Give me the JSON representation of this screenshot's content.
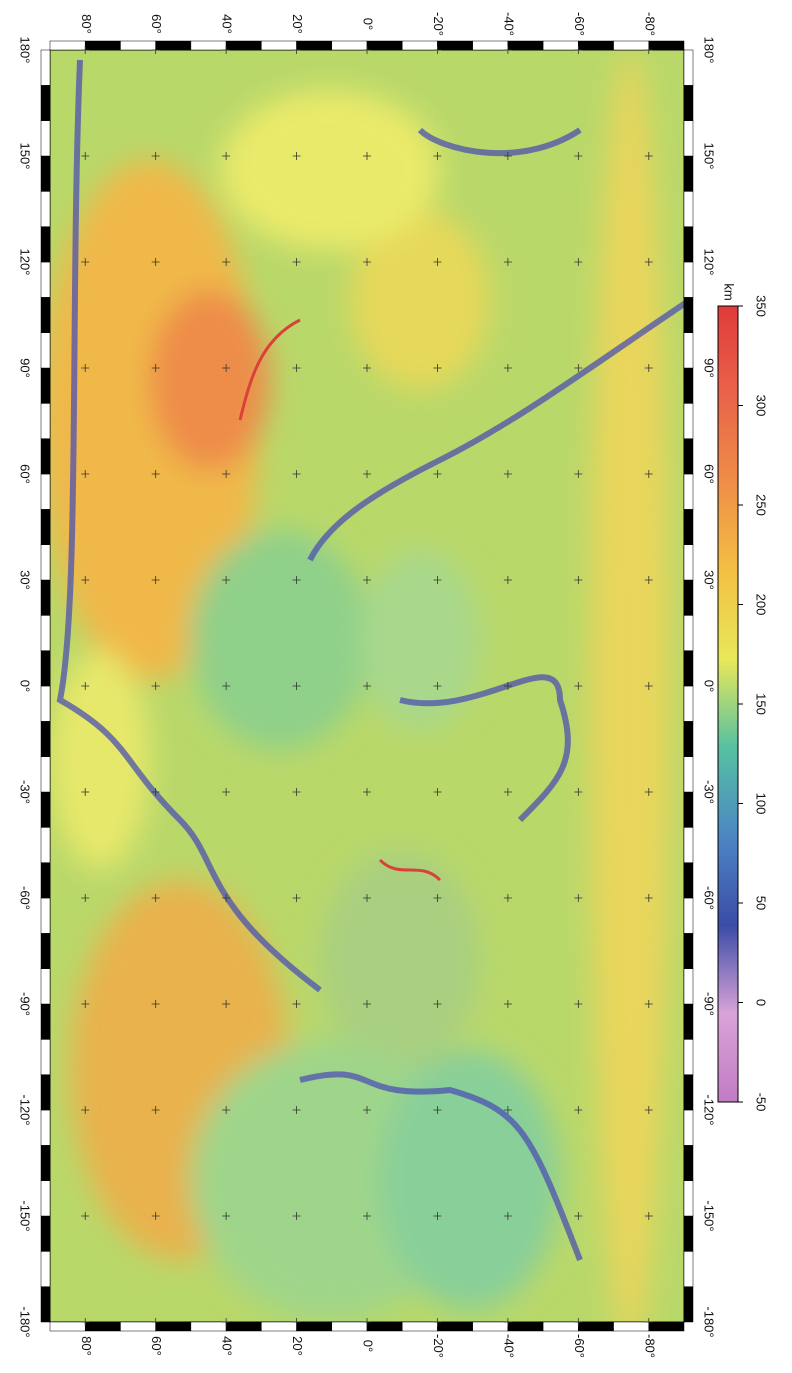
{
  "map": {
    "lon_range": [
      -180,
      180
    ],
    "lat_range": [
      -90,
      90
    ],
    "lon_ticks": [
      {
        "value": -180,
        "label": "-180°"
      },
      {
        "value": -150,
        "label": "-150°"
      },
      {
        "value": -120,
        "label": "-120°"
      },
      {
        "value": -90,
        "label": "-90°"
      },
      {
        "value": -60,
        "label": "-60°"
      },
      {
        "value": -30,
        "label": "-30°"
      },
      {
        "value": 0,
        "label": "0°"
      },
      {
        "value": 30,
        "label": "30°"
      },
      {
        "value": 60,
        "label": "60°"
      },
      {
        "value": 90,
        "label": "90°"
      },
      {
        "value": 120,
        "label": "120°"
      },
      {
        "value": 150,
        "label": "150°"
      },
      {
        "value": 180,
        "label": "180°"
      }
    ],
    "lat_ticks": [
      {
        "value": 80,
        "label": "80°"
      },
      {
        "value": 60,
        "label": "60°"
      },
      {
        "value": 40,
        "label": "40°"
      },
      {
        "value": 20,
        "label": "20°"
      },
      {
        "value": 0,
        "label": "0°"
      },
      {
        "value": -20,
        "label": "-20°"
      },
      {
        "value": -40,
        "label": "-40°"
      },
      {
        "value": -60,
        "label": "-60°"
      },
      {
        "value": -80,
        "label": "-80°"
      }
    ],
    "colorbar": {
      "label": "km",
      "lim": [
        -50,
        350
      ],
      "ticks": [
        -50,
        0,
        50,
        100,
        150,
        200,
        250,
        300,
        350
      ],
      "colors": [
        "#c27bc4",
        "#d9a3d8",
        "#3b4ca6",
        "#4d86c4",
        "#55c1a2",
        "#e8e85a",
        "#f3c043",
        "#ef8e48",
        "#e9634a",
        "#e03b3b"
      ]
    }
  }
}
